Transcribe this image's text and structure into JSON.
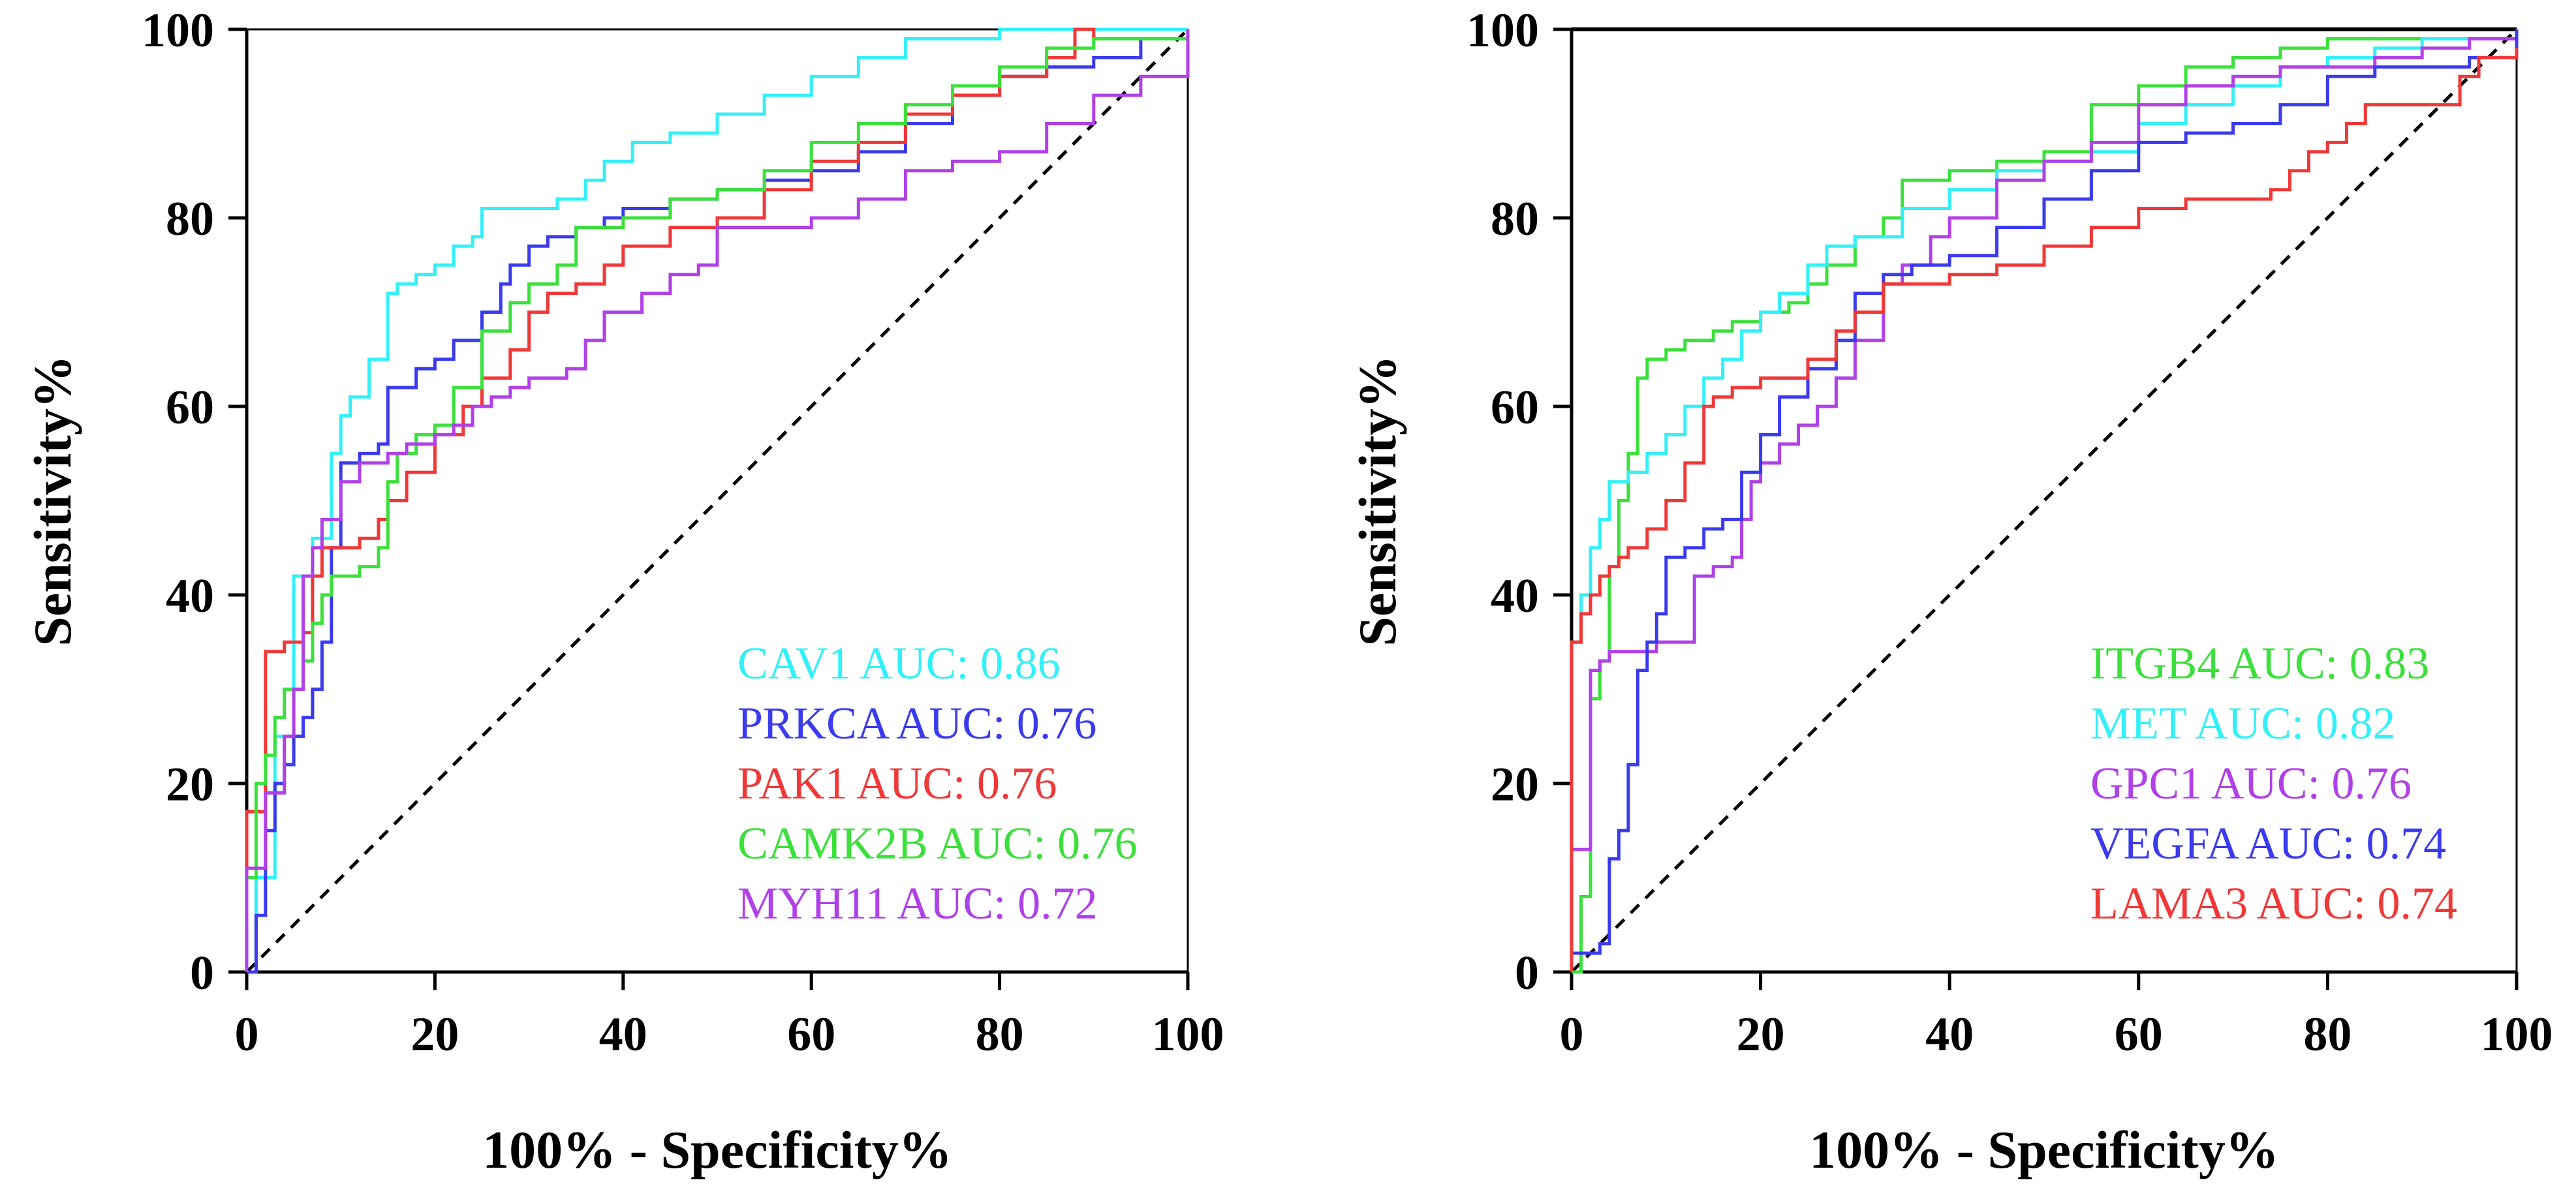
{
  "chart_data": [
    {
      "type": "line",
      "subtype": "roc",
      "xlabel": "100% - Specificity%",
      "ylabel": "Sensitivity%",
      "xlim": [
        0,
        100
      ],
      "ylim": [
        0,
        100
      ],
      "xticks": [
        "0",
        "20",
        "40",
        "60",
        "80",
        "100"
      ],
      "yticks": [
        "0",
        "20",
        "40",
        "60",
        "80",
        "100"
      ],
      "grid": false,
      "legend_position": "bottom-right",
      "reference_line": {
        "style": "dashed",
        "from": [
          0,
          0
        ],
        "to": [
          100,
          100
        ]
      },
      "series": [
        {
          "name": "CAV1",
          "legend": "CAV1 AUC: 0.86",
          "color": "#33f0f8",
          "x": [
            0,
            1,
            1,
            3,
            3,
            5,
            5,
            7,
            7,
            9,
            9,
            10,
            11,
            13,
            13,
            15,
            16,
            18,
            20,
            22,
            24,
            25,
            27,
            30,
            33,
            36,
            38,
            41,
            45,
            50,
            55,
            60,
            65,
            70,
            80,
            90,
            100
          ],
          "y": [
            0,
            6,
            10,
            15,
            25,
            35,
            42,
            43,
            46,
            50,
            55,
            59,
            61,
            62,
            65,
            72,
            73,
            74,
            75,
            77,
            78,
            81,
            81,
            81,
            82,
            84,
            86,
            88,
            89,
            91,
            93,
            95,
            97,
            99,
            100,
            100,
            100
          ]
        },
        {
          "name": "PRKCA",
          "legend": "PRKCA AUC: 0.76",
          "color": "#3a3aee",
          "x": [
            0,
            1,
            2,
            3,
            4,
            5,
            6,
            7,
            8,
            9,
            10,
            12,
            14,
            15,
            18,
            20,
            22,
            25,
            27,
            28,
            30,
            32,
            35,
            38,
            40,
            45,
            50,
            55,
            60,
            65,
            70,
            75,
            80,
            85,
            90,
            95,
            100
          ],
          "y": [
            0,
            6,
            15,
            20,
            22,
            25,
            27,
            30,
            35,
            45,
            54,
            55,
            56,
            62,
            64,
            65,
            67,
            70,
            73,
            75,
            77,
            78,
            79,
            80,
            81,
            82,
            83,
            84,
            85,
            87,
            90,
            93,
            95,
            96,
            97,
            99,
            100
          ]
        },
        {
          "name": "PAK1",
          "legend": "PAK1 AUC: 0.76",
          "color": "#f03838",
          "x": [
            0,
            0,
            1,
            2,
            4,
            5,
            6,
            7,
            8,
            10,
            12,
            14,
            15,
            17,
            20,
            23,
            25,
            28,
            30,
            32,
            35,
            38,
            40,
            45,
            50,
            55,
            60,
            65,
            70,
            75,
            80,
            85,
            88,
            90,
            95,
            100
          ],
          "y": [
            0,
            17,
            17,
            34,
            35,
            35,
            36,
            42,
            45,
            45,
            46,
            48,
            50,
            53,
            57,
            60,
            63,
            66,
            70,
            72,
            73,
            75,
            77,
            79,
            80,
            83,
            86,
            88,
            91,
            93,
            95,
            97,
            100,
            99,
            99,
            100
          ]
        },
        {
          "name": "CAMK2B",
          "legend": "CAMK2B AUC: 0.76",
          "color": "#3ce03c",
          "x": [
            0,
            0,
            1,
            2,
            3,
            4,
            6,
            7,
            8,
            9,
            10,
            12,
            14,
            15,
            16,
            18,
            20,
            22,
            25,
            28,
            30,
            33,
            35,
            40,
            45,
            50,
            55,
            60,
            65,
            70,
            75,
            80,
            85,
            90,
            95,
            100
          ],
          "y": [
            0,
            10,
            20,
            23,
            27,
            30,
            33,
            37,
            40,
            42,
            42,
            43,
            45,
            52,
            55,
            57,
            58,
            62,
            68,
            71,
            73,
            75,
            79,
            80,
            82,
            83,
            85,
            88,
            90,
            92,
            94,
            96,
            98,
            99,
            99,
            100
          ]
        },
        {
          "name": "MYH11",
          "legend": "MYH11 AUC: 0.72",
          "color": "#b040e8",
          "x": [
            0,
            0,
            1,
            2,
            4,
            5,
            6,
            7,
            8,
            10,
            12,
            15,
            17,
            20,
            22,
            24,
            26,
            28,
            30,
            34,
            36,
            38,
            42,
            45,
            48,
            50,
            55,
            60,
            65,
            70,
            75,
            80,
            85,
            90,
            95,
            100
          ],
          "y": [
            0,
            11,
            11,
            19,
            25,
            30,
            42,
            45,
            48,
            52,
            54,
            55,
            56,
            57,
            58,
            60,
            61,
            62,
            63,
            64,
            67,
            70,
            72,
            74,
            75,
            79,
            79,
            80,
            82,
            85,
            86,
            87,
            90,
            93,
            95,
            100
          ]
        }
      ]
    },
    {
      "type": "line",
      "subtype": "roc",
      "xlabel": "100% - Specificity%",
      "ylabel": "Sensitivity%",
      "xlim": [
        0,
        100
      ],
      "ylim": [
        0,
        100
      ],
      "xticks": [
        "0",
        "20",
        "40",
        "60",
        "80",
        "100"
      ],
      "yticks": [
        "0",
        "20",
        "40",
        "60",
        "80",
        "100"
      ],
      "grid": false,
      "legend_position": "bottom-right",
      "reference_line": {
        "style": "dashed",
        "from": [
          0,
          0
        ],
        "to": [
          100,
          100
        ]
      },
      "series": [
        {
          "name": "ITGB4",
          "legend": "ITGB4 AUC: 0.83",
          "color": "#3ce03c",
          "x": [
            0,
            1,
            1,
            2,
            3,
            4,
            5,
            6,
            7,
            8,
            10,
            12,
            15,
            17,
            20,
            23,
            25,
            27,
            30,
            33,
            35,
            40,
            45,
            50,
            55,
            60,
            65,
            70,
            75,
            80,
            85,
            90,
            95,
            100
          ],
          "y": [
            0,
            0,
            8,
            29,
            33,
            43,
            50,
            55,
            63,
            65,
            66,
            67,
            68,
            69,
            70,
            71,
            73,
            75,
            78,
            80,
            84,
            85,
            86,
            87,
            92,
            94,
            96,
            97,
            98,
            99,
            99,
            99,
            99,
            100
          ]
        },
        {
          "name": "MET",
          "legend": "MET AUC: 0.82",
          "color": "#33f0f8",
          "x": [
            0,
            0,
            1,
            2,
            3,
            4,
            6,
            8,
            10,
            12,
            14,
            16,
            18,
            20,
            22,
            25,
            27,
            30,
            35,
            40,
            45,
            50,
            55,
            60,
            65,
            70,
            75,
            80,
            85,
            90,
            95,
            100
          ],
          "y": [
            0,
            35,
            40,
            45,
            48,
            52,
            53,
            55,
            57,
            60,
            63,
            65,
            68,
            70,
            72,
            75,
            77,
            78,
            81,
            83,
            85,
            86,
            87,
            90,
            92,
            94,
            96,
            97,
            98,
            99,
            99,
            100
          ]
        },
        {
          "name": "GPC1",
          "legend": "GPC1 AUC: 0.76",
          "color": "#b040e8",
          "x": [
            0,
            0,
            1,
            2,
            3,
            4,
            5,
            7,
            9,
            11,
            13,
            15,
            17,
            18,
            19,
            20,
            22,
            24,
            26,
            28,
            30,
            33,
            35,
            38,
            40,
            45,
            50,
            55,
            60,
            65,
            70,
            75,
            80,
            85,
            90,
            95,
            100
          ],
          "y": [
            0,
            13,
            13,
            32,
            33,
            34,
            34,
            34,
            35,
            35,
            42,
            43,
            44,
            48,
            52,
            54,
            56,
            58,
            60,
            63,
            67,
            73,
            75,
            78,
            80,
            84,
            86,
            88,
            92,
            94,
            95,
            96,
            96,
            97,
            98,
            99,
            100
          ]
        },
        {
          "name": "VEGFA",
          "legend": "VEGFA AUC: 0.74",
          "color": "#3a3aee",
          "x": [
            0,
            0,
            1,
            2,
            3,
            4,
            5,
            6,
            7,
            8,
            9,
            10,
            12,
            14,
            16,
            18,
            20,
            22,
            25,
            28,
            30,
            33,
            36,
            40,
            45,
            50,
            55,
            60,
            65,
            70,
            75,
            80,
            85,
            90,
            95,
            100
          ],
          "y": [
            0,
            2,
            2,
            2,
            3,
            12,
            15,
            22,
            32,
            35,
            38,
            44,
            45,
            47,
            48,
            53,
            57,
            61,
            64,
            67,
            72,
            74,
            75,
            76,
            79,
            82,
            85,
            88,
            89,
            90,
            92,
            95,
            96,
            96,
            97,
            100
          ]
        },
        {
          "name": "LAMA3",
          "legend": "LAMA3 AUC: 0.74",
          "color": "#f03838",
          "x": [
            0,
            0,
            1,
            2,
            3,
            4,
            5,
            6,
            8,
            10,
            12,
            14,
            15,
            17,
            20,
            25,
            28,
            30,
            33,
            35,
            40,
            45,
            50,
            55,
            60,
            65,
            70,
            74,
            76,
            78,
            80,
            82,
            84,
            86,
            88,
            90,
            92,
            94,
            96,
            100
          ],
          "y": [
            0,
            35,
            38,
            40,
            42,
            43,
            44,
            45,
            47,
            50,
            54,
            60,
            61,
            62,
            63,
            65,
            68,
            70,
            73,
            73,
            74,
            75,
            77,
            79,
            81,
            82,
            82,
            83,
            85,
            87,
            88,
            90,
            92,
            92,
            92,
            92,
            92,
            95,
            97,
            98
          ]
        }
      ]
    }
  ]
}
